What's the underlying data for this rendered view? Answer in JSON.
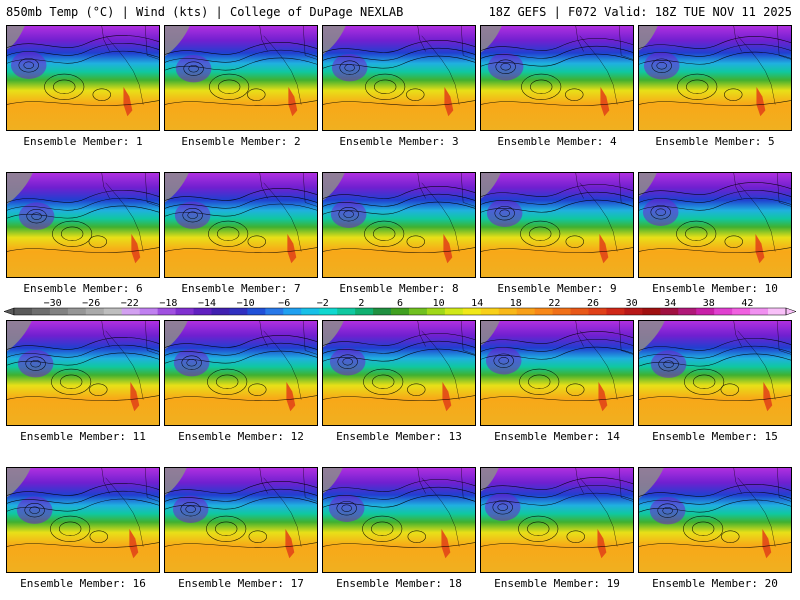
{
  "header": {
    "left": "850mb Temp (°C) | Wind (kts) | College of DuPage NEXLAB",
    "right": "18Z GEFS | F072 Valid: 18Z TUE NOV 11 2025"
  },
  "members": [
    {
      "label": "Ensemble Member: 1"
    },
    {
      "label": "Ensemble Member: 2"
    },
    {
      "label": "Ensemble Member: 3"
    },
    {
      "label": "Ensemble Member: 4"
    },
    {
      "label": "Ensemble Member: 5"
    },
    {
      "label": "Ensemble Member: 6"
    },
    {
      "label": "Ensemble Member: 7"
    },
    {
      "label": "Ensemble Member: 8"
    },
    {
      "label": "Ensemble Member: 9"
    },
    {
      "label": "Ensemble Member: 10"
    },
    {
      "label": "Ensemble Member: 11"
    },
    {
      "label": "Ensemble Member: 12"
    },
    {
      "label": "Ensemble Member: 13"
    },
    {
      "label": "Ensemble Member: 14"
    },
    {
      "label": "Ensemble Member: 15"
    },
    {
      "label": "Ensemble Member: 16"
    },
    {
      "label": "Ensemble Member: 17"
    },
    {
      "label": "Ensemble Member: 18"
    },
    {
      "label": "Ensemble Member: 19"
    },
    {
      "label": "Ensemble Member: 20"
    }
  ],
  "colorbar": {
    "ticks": [
      "−30",
      "−26",
      "−22",
      "−18",
      "−14",
      "−10",
      "−6",
      "−2",
      "2",
      "6",
      "10",
      "14",
      "18",
      "22",
      "26",
      "30",
      "34",
      "38",
      "42"
    ],
    "colors": [
      "#5a5a5a",
      "#6e6e6e",
      "#828282",
      "#969696",
      "#aaaaaa",
      "#bebebe",
      "#d2a0f0",
      "#c080f0",
      "#a050e0",
      "#8030d0",
      "#6020c0",
      "#4020b0",
      "#3030c0",
      "#2050d8",
      "#2878e8",
      "#20a0f0",
      "#18c0e8",
      "#10d8d0",
      "#10c8a0",
      "#10b070",
      "#209040",
      "#40a020",
      "#70c020",
      "#a0d818",
      "#d0e818",
      "#f0e818",
      "#f8d018",
      "#f8b818",
      "#f8a018",
      "#f88818",
      "#f07018",
      "#e85818",
      "#e04018",
      "#d02818",
      "#b81818",
      "#a01010",
      "#a01040",
      "#b01878",
      "#c820a8",
      "#e040d0",
      "#f060e0",
      "#f090f0",
      "#f8c0f8"
    ]
  },
  "palette": {
    "cold_gray": "#8c8c8c",
    "purple": "#b030e0",
    "violet": "#7020d0",
    "blue": "#2040d0",
    "cyan": "#20b0e0",
    "teal": "#10c8a0",
    "green": "#40b030",
    "yellow": "#e8e018",
    "orange": "#f8a818",
    "warm": "#f0b020",
    "red": "#e04018"
  }
}
